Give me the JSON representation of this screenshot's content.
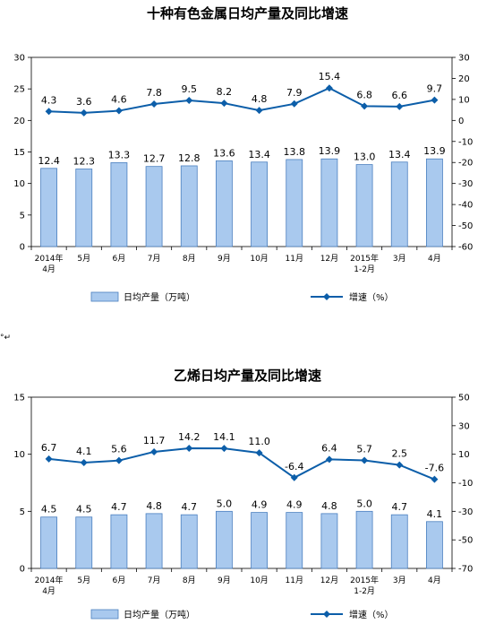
{
  "separator_mark": "°↵",
  "chart_data": [
    {
      "type": "bar",
      "title": "十种有色金属日均产量及同比增速",
      "categories": [
        "2014年\n4月",
        "5月",
        "6月",
        "7月",
        "8月",
        "9月",
        "10月",
        "11月",
        "12月",
        "2015年\n1-2月",
        "3月",
        "4月"
      ],
      "series": [
        {
          "name": "日均产量（万吨）",
          "type": "bar",
          "axis": "left",
          "values": [
            12.4,
            12.3,
            13.3,
            12.7,
            12.8,
            13.6,
            13.4,
            13.8,
            13.9,
            13.0,
            13.4,
            13.9
          ],
          "labels": [
            "12.4",
            "12.3",
            "13.3",
            "12.7",
            "12.8",
            "13.6",
            "13.4",
            "13.8",
            "13.9",
            "13.0",
            "13.4",
            "13.9"
          ]
        },
        {
          "name": "增速（%）",
          "type": "line",
          "axis": "right",
          "values": [
            4.3,
            3.6,
            4.6,
            7.8,
            9.5,
            8.2,
            4.8,
            7.9,
            15.4,
            6.8,
            6.6,
            9.7
          ],
          "labels": [
            "4.3",
            "3.6",
            "4.6",
            "7.8",
            "9.5",
            "8.2",
            "4.8",
            "7.9",
            "15.4",
            "6.8",
            "6.6",
            "9.7"
          ]
        }
      ],
      "ylim_left": [
        0,
        30
      ],
      "yticks_left": [
        "0",
        "5",
        "10",
        "15",
        "20",
        "25",
        "30"
      ],
      "ylim_right": [
        -60,
        30
      ],
      "yticks_right": [
        "-60",
        "-50",
        "-40",
        "-30",
        "-20",
        "-10",
        "0",
        "10",
        "20",
        "30"
      ],
      "bar_color": "#a9c9ee",
      "line_color": "#0c5ea9",
      "legend_position": "bottom",
      "grid": false
    },
    {
      "type": "bar",
      "title": "乙烯日均产量及同比增速",
      "categories": [
        "2014年\n4月",
        "5月",
        "6月",
        "7月",
        "8月",
        "9月",
        "10月",
        "11月",
        "12月",
        "2015年\n1-2月",
        "3月",
        "4月"
      ],
      "series": [
        {
          "name": "日均产量（万吨）",
          "type": "bar",
          "axis": "left",
          "values": [
            4.5,
            4.5,
            4.7,
            4.8,
            4.7,
            5.0,
            4.9,
            4.9,
            4.8,
            5.0,
            4.7,
            4.1
          ],
          "labels": [
            "4.5",
            "4.5",
            "4.7",
            "4.8",
            "4.7",
            "5.0",
            "4.9",
            "4.9",
            "4.8",
            "5.0",
            "4.7",
            "4.1"
          ]
        },
        {
          "name": "增速（%）",
          "type": "line",
          "axis": "right",
          "values": [
            6.7,
            4.1,
            5.6,
            11.7,
            14.2,
            14.1,
            11.0,
            -6.4,
            6.4,
            5.7,
            2.5,
            -7.6
          ],
          "labels": [
            "6.7",
            "4.1",
            "5.6",
            "11.7",
            "14.2",
            "14.1",
            "11.0",
            "-6.4",
            "6.4",
            "5.7",
            "2.5",
            "-7.6"
          ]
        }
      ],
      "ylim_left": [
        0,
        15
      ],
      "yticks_left": [
        "0",
        "5",
        "10",
        "15"
      ],
      "ylim_right": [
        -70,
        50
      ],
      "yticks_right": [
        "-70",
        "-50",
        "-30",
        "-10",
        "10",
        "30",
        "50"
      ],
      "bar_color": "#a9c9ee",
      "line_color": "#0c5ea9",
      "legend_position": "bottom",
      "grid": false
    }
  ]
}
